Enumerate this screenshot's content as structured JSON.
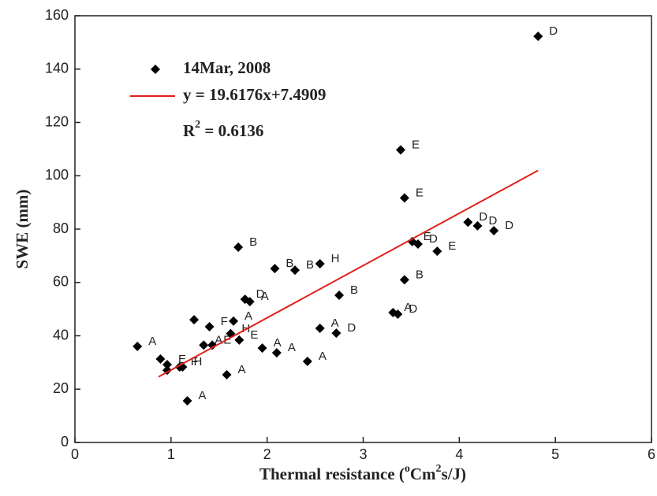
{
  "chart_data": {
    "type": "scatter",
    "x_label_parts": [
      {
        "text": "Thermal resistance ("
      },
      {
        "text": "o",
        "sup": true
      },
      {
        "text": "Cm"
      },
      {
        "text": "2",
        "sup": true
      },
      {
        "text": "s/J)"
      }
    ],
    "y_label": "SWE (mm)",
    "xlim": [
      0,
      6
    ],
    "xticks": [
      0,
      1,
      2,
      3,
      4,
      5,
      6
    ],
    "ylim": [
      0,
      160
    ],
    "yticks": [
      0,
      20,
      40,
      60,
      80,
      100,
      120,
      140,
      160
    ],
    "series": [
      {
        "name": "14Mar, 2008",
        "color": "#000000",
        "x": [
          0.65,
          0.89,
          0.96,
          0.96,
          1.17,
          1.09,
          1.24,
          1.12,
          1.34,
          1.4,
          1.43,
          1.58,
          1.62,
          1.65,
          1.71,
          1.7,
          1.77,
          1.82,
          1.95,
          2.08,
          2.1,
          2.29,
          2.42,
          2.55,
          2.55,
          2.72,
          2.75,
          3.31,
          3.36,
          3.39,
          3.43,
          3.43,
          3.51,
          3.57,
          3.77,
          4.09,
          4.19,
          4.36,
          4.82
        ],
        "values": [
          36,
          31.3,
          27.1,
          29.2,
          15.6,
          28.3,
          46,
          28.3,
          36.5,
          43.4,
          36.5,
          25.4,
          40.8,
          45.5,
          38.4,
          73.2,
          53.7,
          52.8,
          35.4,
          65.2,
          33.6,
          64.6,
          30.4,
          67,
          42.8,
          41,
          55.2,
          48.7,
          48.1,
          109.7,
          91.7,
          61,
          75.3,
          74.4,
          71.7,
          82.6,
          81.2,
          79.4,
          152.3
        ],
        "point_labels": [
          "A",
          null,
          null,
          "E",
          "A",
          "F",
          null,
          "H",
          "A",
          "F",
          "E",
          "A",
          "H",
          "A",
          "E",
          "B",
          "D",
          "A",
          "A",
          "B",
          "A",
          "B",
          "A",
          "H",
          "A",
          "D",
          "B",
          "A",
          "D",
          "E",
          "E",
          "B",
          "E",
          "D",
          "E",
          "D",
          "D",
          "D",
          "D"
        ]
      },
      {
        "name": "y = 19.6176x+7.4909",
        "color": "#e0201b",
        "x": [
          0.87,
          4.82
        ],
        "values": [
          24.6,
          102.0
        ]
      }
    ],
    "r2_label": {
      "base": "R",
      "sup": "2",
      "rest": " = 0.6136"
    }
  }
}
